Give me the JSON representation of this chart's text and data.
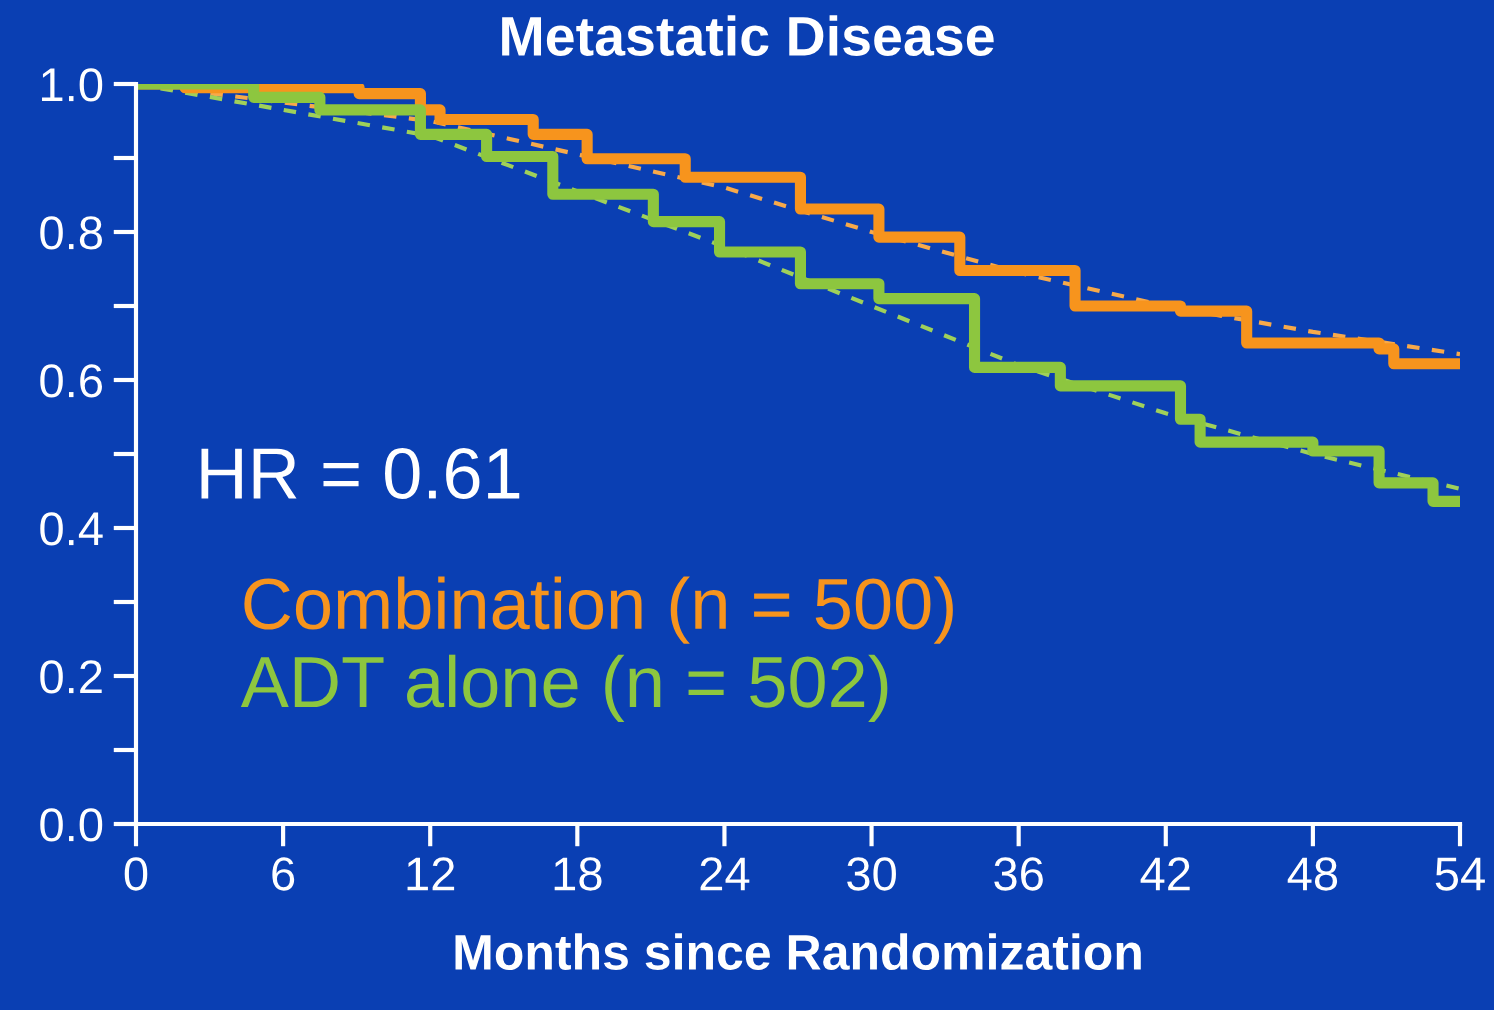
{
  "chart_data": {
    "type": "step",
    "title": "Metastatic Disease",
    "xlabel": "Months since Randomization",
    "xlim": [
      0,
      54
    ],
    "xticks": [
      0,
      6,
      12,
      18,
      24,
      30,
      36,
      42,
      48,
      54
    ],
    "ylim": [
      0,
      1.0
    ],
    "yticks": [
      {
        "value": 0,
        "label": "0.0"
      },
      {
        "value": 0.1,
        "label": null
      },
      {
        "value": 0.2,
        "label": "0.2"
      },
      {
        "value": 0.3,
        "label": null
      },
      {
        "value": 0.4,
        "label": "0.4"
      },
      {
        "value": 0.5,
        "label": null
      },
      {
        "value": 0.6,
        "label": "0.6"
      },
      {
        "value": 0.7,
        "label": null
      },
      {
        "value": 0.8,
        "label": "0.8"
      },
      {
        "value": 0.9,
        "label": null
      },
      {
        "value": 1.0,
        "label": "1.0"
      }
    ],
    "grid": false,
    "legend": "bottom left",
    "line_style": "solid",
    "marker": "none",
    "annotations": [
      "HR = 0.61"
    ],
    "series": [
      {
        "name": "Combination (n = 500)",
        "color": "#f7941d",
        "x": [
          0,
          2,
          9.1,
          11.6,
          12.4,
          16.2,
          18.4,
          22.4,
          27.1,
          30.3,
          33.6,
          38.3,
          42.6,
          45.3,
          50.7,
          51.3,
          54
        ],
        "values": [
          1.0,
          0.995,
          0.987,
          0.965,
          0.952,
          0.932,
          0.899,
          0.874,
          0.831,
          0.793,
          0.748,
          0.7,
          0.693,
          0.65,
          0.642,
          0.622,
          0.622
        ]
      },
      {
        "name": "ADT alone (n = 502)",
        "color": "#8dc63f",
        "x": [
          0,
          2,
          4.8,
          7.5,
          11.6,
          14.3,
          17,
          21.1,
          23.8,
          27.1,
          30.3,
          34.2,
          37.7,
          42.6,
          43.4,
          48,
          50.7,
          52.9,
          54
        ],
        "values": [
          1.0,
          1.0,
          0.982,
          0.965,
          0.932,
          0.902,
          0.851,
          0.814,
          0.773,
          0.73,
          0.71,
          0.617,
          0.592,
          0.547,
          0.516,
          0.504,
          0.461,
          0.436,
          0.436
        ]
      },
      {
        "type": "line",
        "line_style": "dashed",
        "color": "#f7a94a",
        "x": [
          0,
          12,
          24,
          30,
          36,
          42,
          48,
          54
        ],
        "values": [
          1.0,
          0.95,
          0.86,
          0.8,
          0.745,
          0.7,
          0.665,
          0.635
        ]
      },
      {
        "type": "line",
        "line_style": "dashed",
        "color": "#9fd05a",
        "x": [
          0,
          12,
          24,
          30,
          36,
          42,
          48,
          54
        ],
        "values": [
          1.0,
          0.93,
          0.78,
          0.7,
          0.62,
          0.555,
          0.5,
          0.453
        ]
      }
    ]
  }
}
